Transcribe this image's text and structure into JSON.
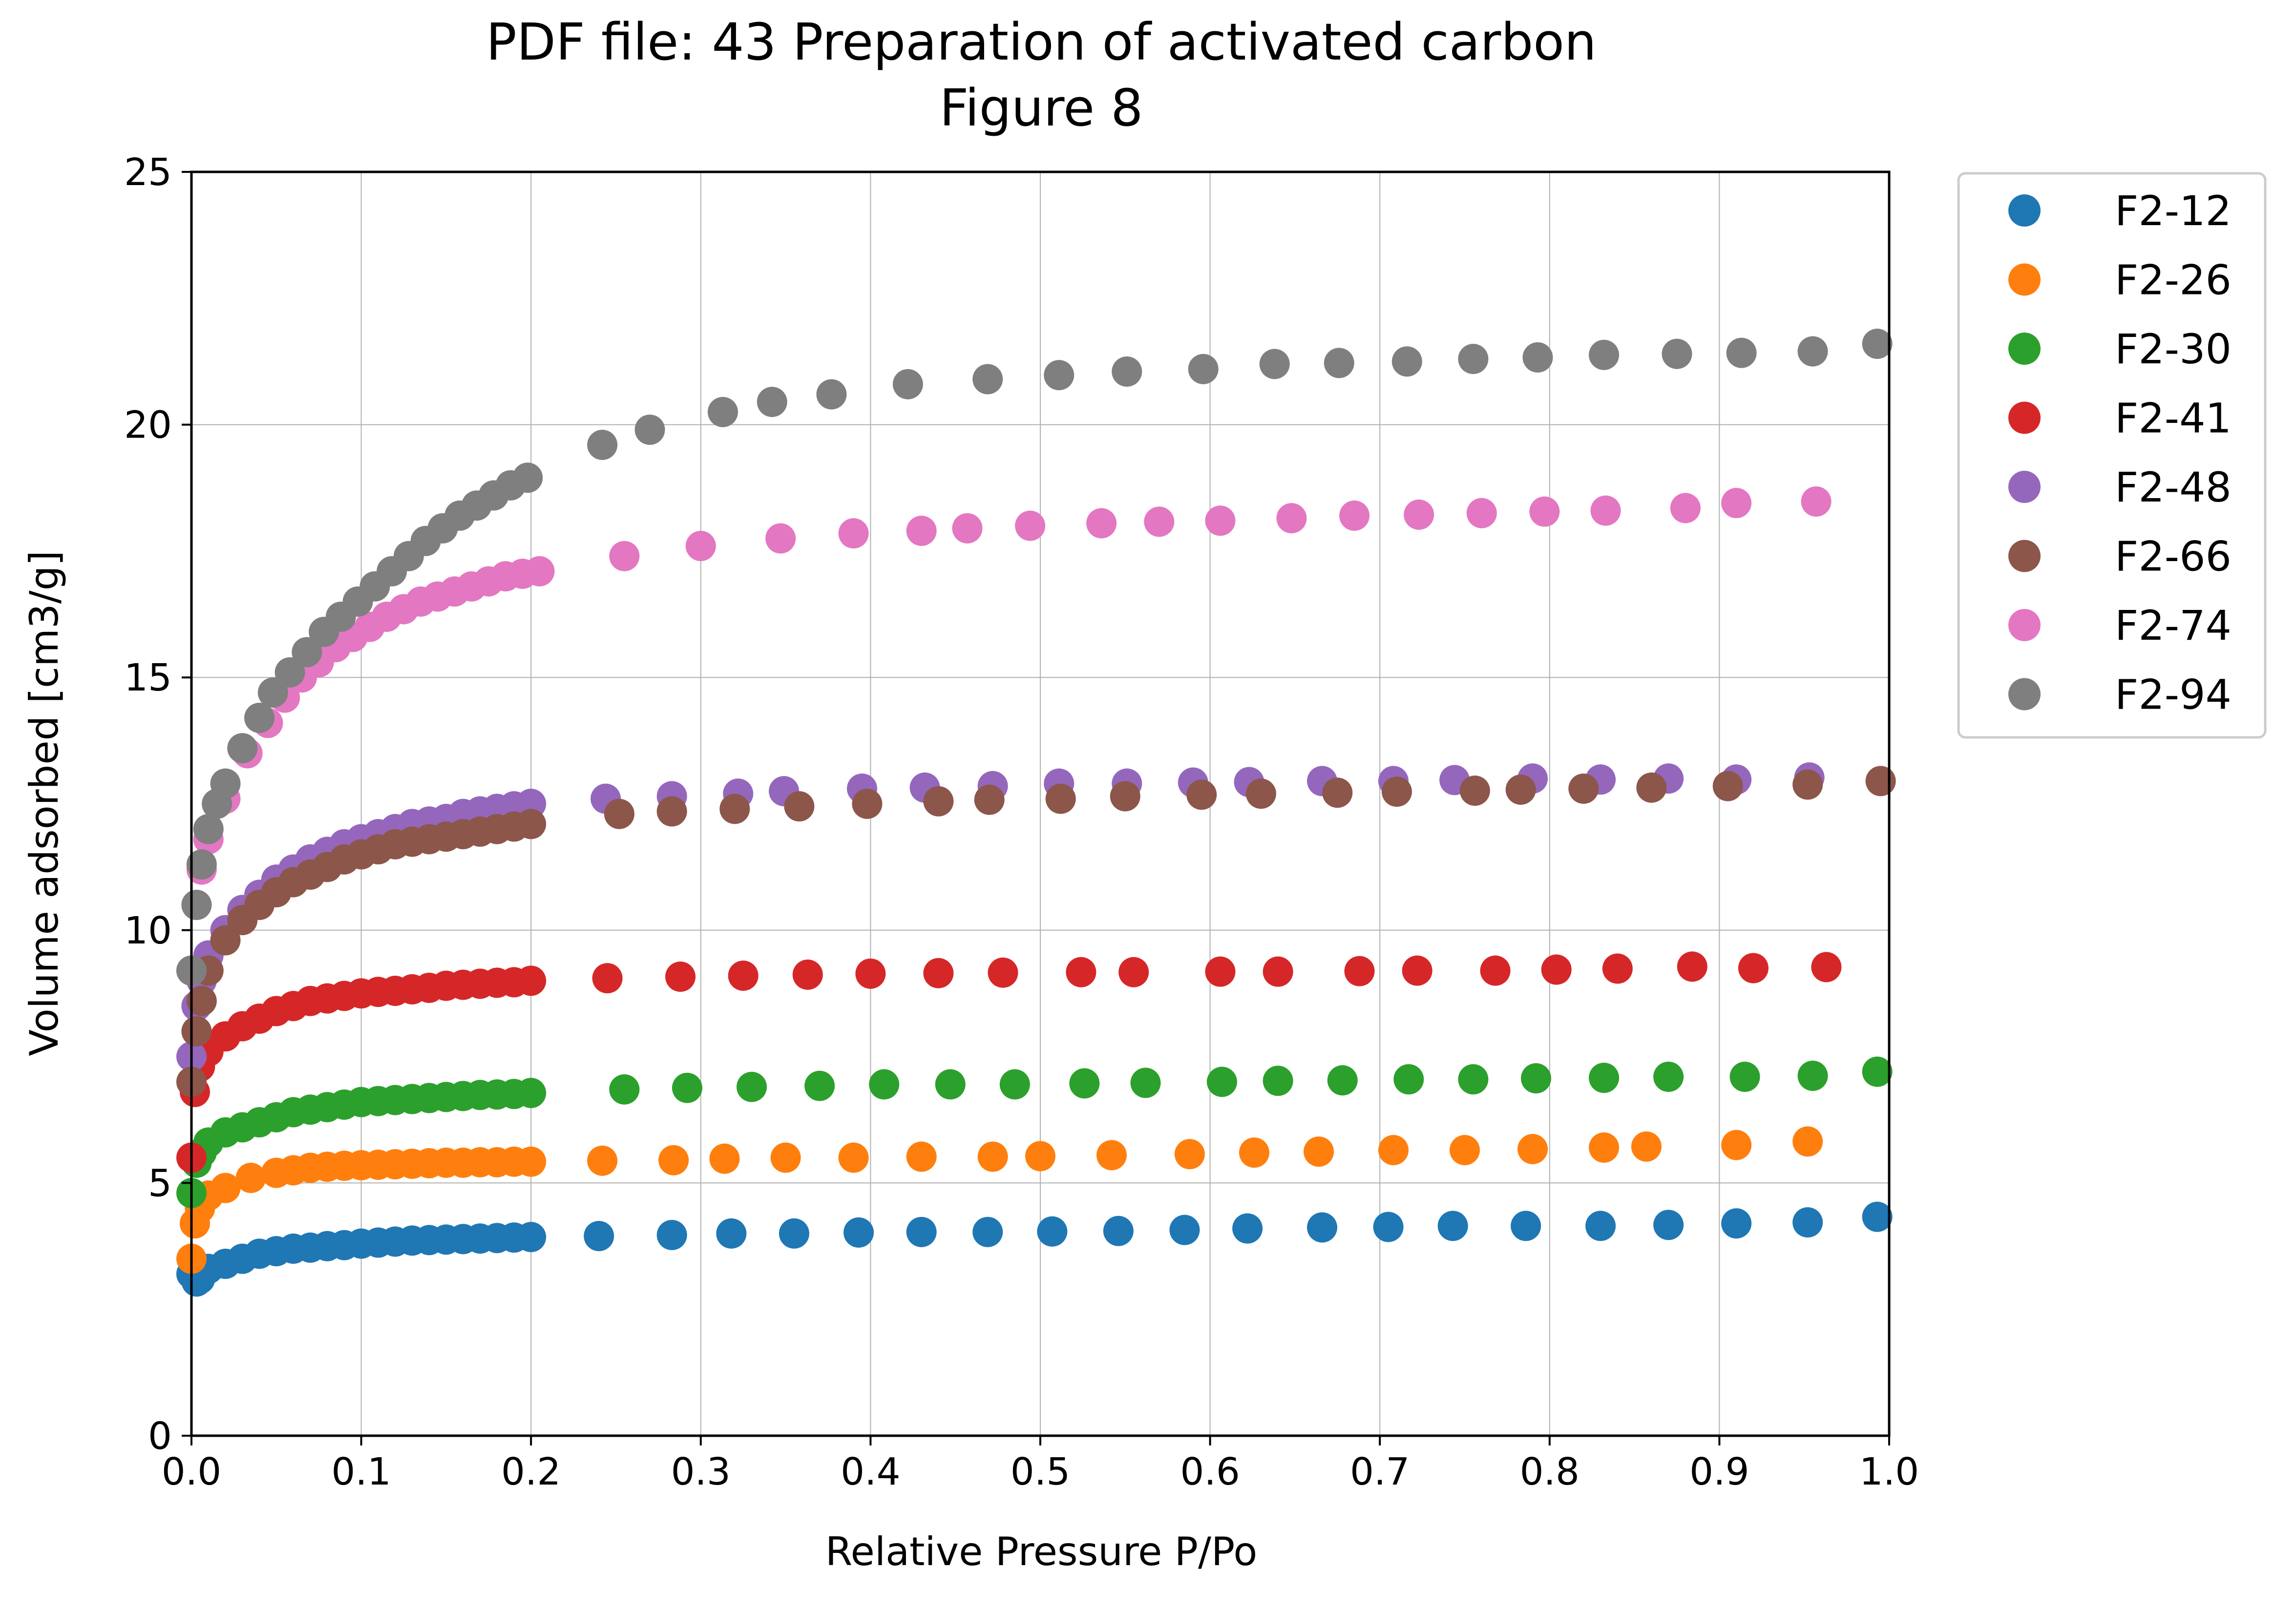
{
  "chart_data": {
    "type": "scatter",
    "title": "PDF file: 43 Preparation of activated carbon",
    "subtitle": "Figure 8",
    "xlabel": "Relative Pressure P/Po",
    "ylabel": "Volume adsorbed [cm3/g]",
    "xlim": [
      0,
      1.0
    ],
    "ylim": [
      0,
      25
    ],
    "xticks": [
      "0.0",
      "0.1",
      "0.2",
      "0.3",
      "0.4",
      "0.5",
      "0.6",
      "0.7",
      "0.8",
      "0.9",
      "1.0"
    ],
    "yticks": [
      "0",
      "5",
      "10",
      "15",
      "20",
      "25"
    ],
    "grid": true,
    "legend_position": "outside-right-top",
    "series": [
      {
        "name": "F2-12",
        "color": "#1f77b4",
        "x": [
          0.0,
          0.003,
          0.005,
          0.01,
          0.02,
          0.03,
          0.04,
          0.05,
          0.06,
          0.07,
          0.08,
          0.09,
          0.1,
          0.11,
          0.12,
          0.13,
          0.14,
          0.15,
          0.16,
          0.17,
          0.18,
          0.19,
          0.2,
          0.24,
          0.283,
          0.318,
          0.355,
          0.393,
          0.43,
          0.469,
          0.507,
          0.546,
          0.585,
          0.622,
          0.666,
          0.705,
          0.743,
          0.786,
          0.83,
          0.87,
          0.91,
          0.952,
          0.993
        ],
        "y": [
          3.2,
          3.05,
          3.1,
          3.3,
          3.4,
          3.5,
          3.6,
          3.65,
          3.7,
          3.72,
          3.75,
          3.77,
          3.8,
          3.82,
          3.84,
          3.86,
          3.87,
          3.88,
          3.89,
          3.9,
          3.91,
          3.92,
          3.93,
          3.95,
          3.97,
          4.0,
          4.0,
          4.02,
          4.03,
          4.03,
          4.04,
          4.05,
          4.07,
          4.1,
          4.12,
          4.13,
          4.15,
          4.15,
          4.15,
          4.17,
          4.2,
          4.22,
          4.33
        ]
      },
      {
        "name": "F2-26",
        "color": "#ff7f0e",
        "x": [
          0.0,
          0.002,
          0.005,
          0.01,
          0.02,
          0.035,
          0.05,
          0.06,
          0.07,
          0.08,
          0.09,
          0.1,
          0.11,
          0.12,
          0.13,
          0.14,
          0.15,
          0.16,
          0.17,
          0.18,
          0.19,
          0.2,
          0.242,
          0.284,
          0.314,
          0.35,
          0.39,
          0.43,
          0.472,
          0.5,
          0.542,
          0.588,
          0.626,
          0.664,
          0.708,
          0.75,
          0.79,
          0.832,
          0.857,
          0.91,
          0.952
        ],
        "y": [
          3.5,
          4.2,
          4.5,
          4.75,
          4.9,
          5.1,
          5.2,
          5.25,
          5.3,
          5.32,
          5.34,
          5.35,
          5.36,
          5.37,
          5.38,
          5.39,
          5.4,
          5.4,
          5.41,
          5.41,
          5.42,
          5.42,
          5.44,
          5.45,
          5.48,
          5.5,
          5.5,
          5.52,
          5.52,
          5.53,
          5.55,
          5.57,
          5.6,
          5.62,
          5.65,
          5.65,
          5.67,
          5.7,
          5.72,
          5.75,
          5.82
        ]
      },
      {
        "name": "F2-30",
        "color": "#2ca02c",
        "x": [
          0.0,
          0.003,
          0.006,
          0.01,
          0.02,
          0.03,
          0.04,
          0.05,
          0.06,
          0.07,
          0.08,
          0.09,
          0.1,
          0.11,
          0.12,
          0.13,
          0.14,
          0.15,
          0.16,
          0.17,
          0.18,
          0.19,
          0.2,
          0.255,
          0.292,
          0.33,
          0.37,
          0.408,
          0.447,
          0.485,
          0.526,
          0.562,
          0.607,
          0.64,
          0.678,
          0.717,
          0.755,
          0.792,
          0.832,
          0.87,
          0.915,
          0.955,
          0.993
        ],
        "y": [
          4.8,
          5.4,
          5.6,
          5.8,
          6.0,
          6.1,
          6.2,
          6.3,
          6.4,
          6.45,
          6.5,
          6.55,
          6.6,
          6.62,
          6.64,
          6.66,
          6.68,
          6.7,
          6.72,
          6.74,
          6.75,
          6.76,
          6.78,
          6.85,
          6.88,
          6.9,
          6.92,
          6.95,
          6.95,
          6.95,
          6.97,
          6.98,
          7.0,
          7.02,
          7.03,
          7.05,
          7.05,
          7.07,
          7.08,
          7.1,
          7.1,
          7.12,
          7.2
        ]
      },
      {
        "name": "F2-41",
        "color": "#d62728",
        "x": [
          0.0,
          0.002,
          0.005,
          0.01,
          0.02,
          0.03,
          0.04,
          0.05,
          0.06,
          0.07,
          0.08,
          0.09,
          0.1,
          0.11,
          0.12,
          0.13,
          0.14,
          0.15,
          0.16,
          0.17,
          0.18,
          0.19,
          0.2,
          0.245,
          0.288,
          0.325,
          0.363,
          0.4,
          0.44,
          0.478,
          0.524,
          0.555,
          0.606,
          0.64,
          0.688,
          0.722,
          0.768,
          0.804,
          0.84,
          0.884,
          0.92,
          0.963
        ],
        "y": [
          5.5,
          6.8,
          7.3,
          7.6,
          7.9,
          8.1,
          8.25,
          8.4,
          8.5,
          8.6,
          8.65,
          8.7,
          8.75,
          8.78,
          8.8,
          8.83,
          8.86,
          8.9,
          8.92,
          8.94,
          8.96,
          8.97,
          9.0,
          9.05,
          9.08,
          9.1,
          9.12,
          9.14,
          9.15,
          9.16,
          9.17,
          9.17,
          9.18,
          9.18,
          9.19,
          9.2,
          9.2,
          9.22,
          9.24,
          9.28,
          9.25,
          9.27
        ]
      },
      {
        "name": "F2-48",
        "color": "#9467bd",
        "x": [
          0.0,
          0.003,
          0.006,
          0.01,
          0.02,
          0.03,
          0.04,
          0.05,
          0.06,
          0.07,
          0.08,
          0.09,
          0.1,
          0.11,
          0.12,
          0.13,
          0.14,
          0.15,
          0.16,
          0.17,
          0.18,
          0.19,
          0.2,
          0.244,
          0.283,
          0.322,
          0.349,
          0.395,
          0.432,
          0.472,
          0.511,
          0.551,
          0.59,
          0.623,
          0.666,
          0.708,
          0.744,
          0.79,
          0.83,
          0.87,
          0.91,
          0.953
        ],
        "y": [
          7.5,
          8.5,
          9.0,
          9.5,
          10.0,
          10.4,
          10.7,
          11.0,
          11.2,
          11.4,
          11.55,
          11.7,
          11.8,
          11.9,
          12.0,
          12.1,
          12.15,
          12.2,
          12.3,
          12.35,
          12.4,
          12.45,
          12.5,
          12.6,
          12.65,
          12.7,
          12.75,
          12.8,
          12.82,
          12.85,
          12.9,
          12.9,
          12.92,
          12.93,
          12.95,
          12.95,
          12.97,
          13.0,
          12.98,
          13.0,
          12.98,
          13.02
        ]
      },
      {
        "name": "F2-66",
        "color": "#8c564b",
        "x": [
          0.0,
          0.003,
          0.006,
          0.01,
          0.02,
          0.03,
          0.04,
          0.05,
          0.06,
          0.07,
          0.08,
          0.09,
          0.1,
          0.11,
          0.12,
          0.13,
          0.14,
          0.15,
          0.16,
          0.17,
          0.18,
          0.19,
          0.2,
          0.252,
          0.283,
          0.32,
          0.358,
          0.398,
          0.44,
          0.47,
          0.512,
          0.55,
          0.595,
          0.63,
          0.675,
          0.71,
          0.756,
          0.783,
          0.82,
          0.86,
          0.905,
          0.952,
          0.995
        ],
        "y": [
          7.0,
          8.0,
          8.6,
          9.2,
          9.8,
          10.2,
          10.5,
          10.75,
          10.95,
          11.1,
          11.25,
          11.4,
          11.5,
          11.6,
          11.7,
          11.75,
          11.8,
          11.85,
          11.9,
          11.95,
          12.0,
          12.05,
          12.1,
          12.3,
          12.35,
          12.4,
          12.45,
          12.5,
          12.55,
          12.58,
          12.6,
          12.65,
          12.68,
          12.7,
          12.72,
          12.74,
          12.76,
          12.78,
          12.8,
          12.82,
          12.85,
          12.88,
          12.95
        ]
      },
      {
        "name": "F2-74",
        "color": "#e377c2",
        "x": [
          0.0,
          0.003,
          0.006,
          0.01,
          0.02,
          0.033,
          0.045,
          0.055,
          0.065,
          0.075,
          0.085,
          0.095,
          0.105,
          0.115,
          0.125,
          0.135,
          0.145,
          0.155,
          0.165,
          0.175,
          0.185,
          0.195,
          0.205,
          0.255,
          0.3,
          0.347,
          0.39,
          0.43,
          0.457,
          0.494,
          0.536,
          0.57,
          0.606,
          0.648,
          0.685,
          0.723,
          0.76,
          0.797,
          0.833,
          0.88,
          0.91,
          0.957
        ],
        "y": [
          9.2,
          10.5,
          11.2,
          11.8,
          12.6,
          13.5,
          14.1,
          14.6,
          15.0,
          15.3,
          15.6,
          15.8,
          16.0,
          16.2,
          16.35,
          16.5,
          16.6,
          16.7,
          16.8,
          16.9,
          17.0,
          17.05,
          17.1,
          17.4,
          17.6,
          17.75,
          17.85,
          17.9,
          17.95,
          18.0,
          18.05,
          18.08,
          18.1,
          18.15,
          18.2,
          18.22,
          18.25,
          18.28,
          18.3,
          18.35,
          18.45,
          18.48
        ]
      },
      {
        "name": "F2-94",
        "color": "#7f7f7f",
        "x": [
          0.0,
          0.003,
          0.006,
          0.01,
          0.015,
          0.02,
          0.03,
          0.04,
          0.048,
          0.058,
          0.068,
          0.078,
          0.088,
          0.098,
          0.108,
          0.118,
          0.128,
          0.138,
          0.148,
          0.158,
          0.168,
          0.178,
          0.188,
          0.198,
          0.242,
          0.27,
          0.313,
          0.342,
          0.377,
          0.422,
          0.469,
          0.511,
          0.551,
          0.596,
          0.638,
          0.676,
          0.716,
          0.755,
          0.793,
          0.832,
          0.875,
          0.913,
          0.955,
          0.993
        ],
        "y": [
          9.2,
          10.5,
          11.3,
          12.0,
          12.5,
          12.9,
          13.6,
          14.2,
          14.7,
          15.1,
          15.5,
          15.9,
          16.2,
          16.5,
          16.8,
          17.1,
          17.4,
          17.7,
          17.95,
          18.2,
          18.4,
          18.6,
          18.8,
          18.95,
          19.6,
          19.9,
          20.25,
          20.45,
          20.6,
          20.8,
          20.9,
          20.98,
          21.05,
          21.1,
          21.2,
          21.22,
          21.25,
          21.3,
          21.33,
          21.38,
          21.4,
          21.42,
          21.45,
          21.6
        ]
      }
    ]
  }
}
